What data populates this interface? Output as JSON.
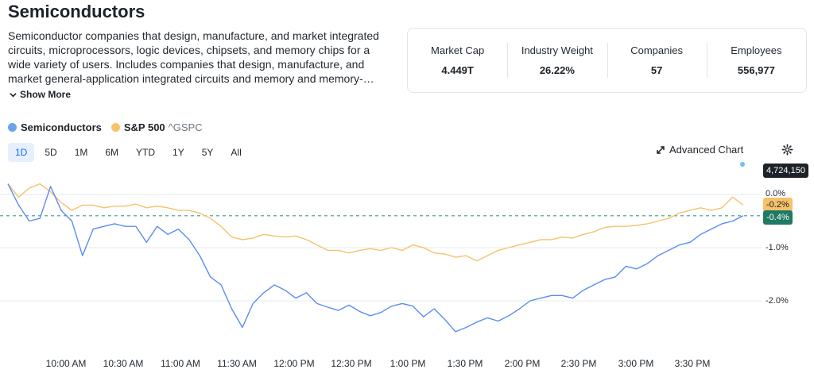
{
  "page": {
    "title": "Semiconductors",
    "description": "Semiconductor companies that design, manufacture, and market integrated circuits, microprocessors, logic devices, chipsets, and memory chips for a wide variety of users. Includes companies that design, manufacture, and market general-application integrated circuits and memory and memory-…",
    "show_more_label": "Show More"
  },
  "stats": [
    {
      "label": "Market Cap",
      "value": "4.449T"
    },
    {
      "label": "Industry Weight",
      "value": "26.22%"
    },
    {
      "label": "Companies",
      "value": "57"
    },
    {
      "label": "Employees",
      "value": "556,977"
    }
  ],
  "legend": {
    "primary": {
      "name": "Semiconductors",
      "color": "#6aa3e8"
    },
    "comparison": {
      "name": "S&P 500",
      "ticker": "^GSPC",
      "color": "#f5c26b"
    }
  },
  "ranges": [
    "1D",
    "5D",
    "1M",
    "6M",
    "YTD",
    "1Y",
    "5Y",
    "All"
  ],
  "active_range": "1D",
  "toolbar": {
    "advanced_chart_label": "Advanced Chart"
  },
  "badges": {
    "price": "4,724,150",
    "sp500_change": "-0.2%",
    "semis_change": "-0.4%"
  },
  "chart_data": {
    "type": "line",
    "x_labels": [
      "10:00 AM",
      "10:30 AM",
      "11:00 AM",
      "11:30 AM",
      "12:00 PM",
      "12:30 PM",
      "1:00 PM",
      "1:30 PM",
      "2:00 PM",
      "2:30 PM",
      "3:00 PM",
      "3:30 PM"
    ],
    "y_ticks": [
      "0.0%",
      "-1.0%",
      "-2.0%"
    ],
    "y_values": [
      0.0,
      -1.0,
      -2.0
    ],
    "ylim": [
      -2.7,
      0.3
    ],
    "baseline": -0.4,
    "series": [
      {
        "name": "Semiconductors",
        "color": "#5b8def",
        "values": [
          0.2,
          -0.2,
          -0.5,
          -0.45,
          0.15,
          -0.3,
          -0.5,
          -1.15,
          -0.65,
          -0.6,
          -0.55,
          -0.6,
          -0.6,
          -0.9,
          -0.6,
          -0.75,
          -0.65,
          -0.85,
          -1.15,
          -1.55,
          -1.7,
          -2.15,
          -2.5,
          -2.05,
          -1.85,
          -1.7,
          -1.8,
          -1.95,
          -1.85,
          -2.05,
          -2.12,
          -2.18,
          -2.08,
          -2.2,
          -2.28,
          -2.22,
          -2.1,
          -2.05,
          -2.1,
          -2.3,
          -2.15,
          -2.35,
          -2.58,
          -2.5,
          -2.4,
          -2.32,
          -2.38,
          -2.28,
          -2.15,
          -2.0,
          -1.95,
          -1.9,
          -1.9,
          -1.95,
          -1.8,
          -1.7,
          -1.6,
          -1.55,
          -1.35,
          -1.4,
          -1.3,
          -1.15,
          -1.05,
          -0.95,
          -0.9,
          -0.75,
          -0.65,
          -0.55,
          -0.5,
          -0.4
        ]
      },
      {
        "name": "S&P 500",
        "color": "#f5c26b",
        "values": [
          0.2,
          -0.05,
          0.12,
          0.2,
          0.05,
          -0.15,
          -0.3,
          -0.2,
          -0.2,
          -0.25,
          -0.22,
          -0.22,
          -0.18,
          -0.25,
          -0.22,
          -0.25,
          -0.3,
          -0.3,
          -0.35,
          -0.45,
          -0.6,
          -0.8,
          -0.85,
          -0.82,
          -0.75,
          -0.78,
          -0.8,
          -0.78,
          -0.85,
          -0.95,
          -1.05,
          -1.05,
          -1.1,
          -1.05,
          -1.02,
          -1.05,
          -1.0,
          -1.05,
          -0.95,
          -1.0,
          -1.1,
          -1.12,
          -1.18,
          -1.15,
          -1.25,
          -1.15,
          -1.05,
          -1.0,
          -0.95,
          -0.9,
          -0.85,
          -0.85,
          -0.8,
          -0.82,
          -0.75,
          -0.7,
          -0.62,
          -0.6,
          -0.6,
          -0.58,
          -0.55,
          -0.5,
          -0.45,
          -0.35,
          -0.3,
          -0.25,
          -0.3,
          -0.25,
          -0.05,
          -0.2
        ]
      }
    ]
  }
}
